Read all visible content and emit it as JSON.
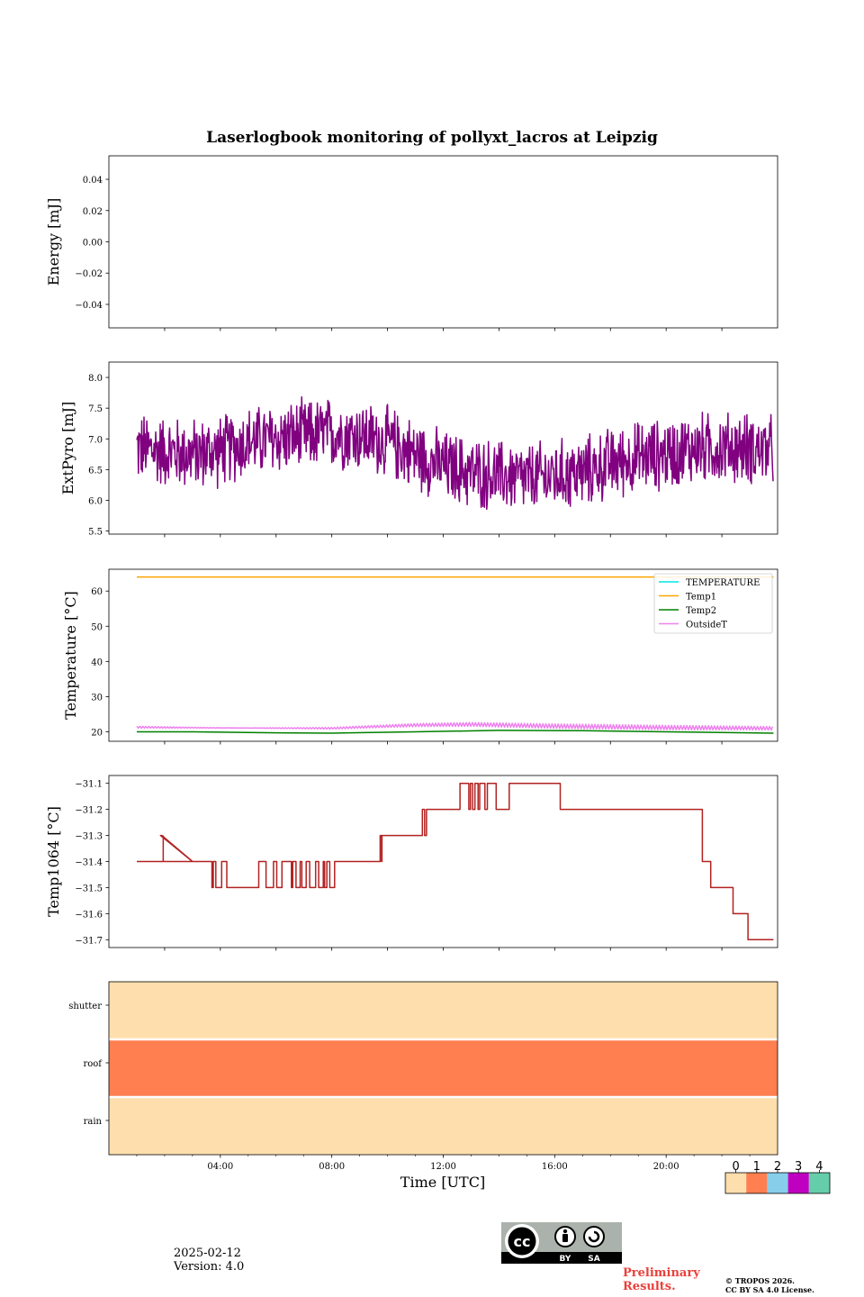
{
  "figure": {
    "title": "Laserlogbook monitoring of pollyxt_lacros at Leipzig",
    "xlabel": "Time [UTC]",
    "date": "2025-02-12",
    "version": "Version: 4.0",
    "preliminary_line1": "Preliminary",
    "preliminary_line2": "Results.",
    "copyright_line1": "© TROPOS 2026.",
    "copyright_line2": "CC BY SA 4.0 License.",
    "cc_badge": {
      "by": "BY",
      "sa": "SA",
      "cc": "cc"
    }
  },
  "chart_data": [
    {
      "type": "line",
      "id": "energy",
      "ylabel": "Energy [mJ]",
      "xlim": [
        0,
        24
      ],
      "ylim": [
        -0.055,
        0.055
      ],
      "yticks": [
        0.04,
        0.02,
        0.0,
        -0.02,
        -0.04
      ],
      "ytick_labels": [
        "0.04",
        "0.02",
        "0.00",
        "−0.02",
        "−0.04"
      ],
      "series": []
    },
    {
      "type": "line",
      "id": "extpyro",
      "ylabel": "ExtPyro [mJ]",
      "xlim": [
        0,
        24
      ],
      "ylim": [
        5.45,
        8.25
      ],
      "yticks": [
        8.0,
        7.5,
        7.0,
        6.5,
        6.0,
        5.5
      ],
      "ytick_labels": [
        "8.0",
        "7.5",
        "7.0",
        "6.5",
        "6.0",
        "5.5"
      ],
      "series": [
        {
          "name": "ExtPyro",
          "color": "#800080",
          "noisy": true,
          "t_start": 1.0,
          "t_end": 23.85,
          "envelope_times": [
            1.0,
            2.0,
            3.0,
            4.0,
            5.0,
            6.0,
            7.0,
            8.0,
            9.0,
            10.0,
            11.0,
            12.0,
            13.0,
            14.0,
            15.0,
            16.0,
            17.0,
            18.0,
            19.0,
            20.0,
            21.0,
            22.0,
            23.0,
            23.85
          ],
          "envelope_mean": [
            6.85,
            6.8,
            6.75,
            6.8,
            6.95,
            7.0,
            7.05,
            7.1,
            7.05,
            6.95,
            6.75,
            6.55,
            6.45,
            6.4,
            6.35,
            6.4,
            6.45,
            6.6,
            6.7,
            6.75,
            6.85,
            6.85,
            6.85,
            6.8
          ],
          "amplitude": 0.55
        }
      ]
    },
    {
      "type": "line",
      "id": "temperature",
      "ylabel": "Temperature [°C]",
      "xlim": [
        0,
        24
      ],
      "ylim": [
        17.3,
        66.2
      ],
      "yticks": [
        60,
        50,
        40,
        30,
        20
      ],
      "ytick_labels": [
        "60",
        "50",
        "40",
        "30",
        "20"
      ],
      "legend": "top-right",
      "series": [
        {
          "name": "TEMPERATURE",
          "color": "#00e5e5",
          "t": [],
          "y": []
        },
        {
          "name": "Temp1",
          "color": "#ffa500",
          "t": [
            1.0,
            23.85
          ],
          "y": [
            64.0,
            64.0
          ]
        },
        {
          "name": "Temp2",
          "color": "#008000",
          "t": [
            1.0,
            3.0,
            6.0,
            8.0,
            11.0,
            14.0,
            17.0,
            20.0,
            23.85
          ],
          "y": [
            20.0,
            20.0,
            19.7,
            19.6,
            20.0,
            20.4,
            20.3,
            20.0,
            19.6
          ]
        },
        {
          "name": "OutsideT",
          "color": "#ee82ee",
          "noisy": true,
          "t_start": 1.0,
          "t_end": 23.85,
          "envelope_times": [
            1.0,
            4.0,
            8.0,
            11.0,
            13.0,
            16.0,
            20.0,
            23.85
          ],
          "envelope_mean": [
            21.3,
            21.1,
            21.0,
            21.9,
            22.1,
            21.6,
            21.2,
            21.0
          ],
          "amplitude": 0.7
        }
      ]
    },
    {
      "type": "line",
      "id": "temp1064",
      "ylabel": "Temp1064 [°C]",
      "xlim": [
        0,
        24
      ],
      "ylim": [
        -31.73,
        -31.07
      ],
      "yticks": [
        -31.1,
        -31.2,
        -31.3,
        -31.4,
        -31.5,
        -31.6,
        -31.7
      ],
      "ytick_labels": [
        "−31.1",
        "−31.2",
        "−31.3",
        "−31.4",
        "−31.5",
        "−31.6",
        "−31.7"
      ],
      "series": [
        {
          "name": "Temp1064",
          "color": "#b22222",
          "segments": [
            {
              "t0": 1.0,
              "t1": 3.0,
              "base": -31.4,
              "alt": -31.5,
              "flicker": 0.0
            },
            {
              "t0": 1.85,
              "t1": 1.9,
              "base": -31.3,
              "alt": -31.4,
              "flicker": 0.0
            },
            {
              "t0": 3.0,
              "t1": 3.7,
              "base": -31.4,
              "alt": -31.5,
              "flicker": 0.0
            },
            {
              "t0": 3.7,
              "t1": 4.5,
              "base": -31.5,
              "alt": -31.4,
              "flicker": 0.5
            },
            {
              "t0": 4.5,
              "t1": 5.2,
              "base": -31.5,
              "alt": -31.4,
              "flicker": 0.0
            },
            {
              "t0": 5.2,
              "t1": 8.1,
              "base": -31.5,
              "alt": -31.4,
              "flicker": 0.5
            },
            {
              "t0": 8.1,
              "t1": 9.4,
              "base": -31.4,
              "alt": -31.3,
              "flicker": 0.0
            },
            {
              "t0": 9.4,
              "t1": 9.8,
              "base": -31.4,
              "alt": -31.3,
              "flicker": 0.5
            },
            {
              "t0": 9.8,
              "t1": 11.2,
              "base": -31.3,
              "alt": -31.2,
              "flicker": 0.0
            },
            {
              "t0": 11.2,
              "t1": 11.4,
              "base": -31.3,
              "alt": -31.2,
              "flicker": 0.5
            },
            {
              "t0": 11.4,
              "t1": 12.6,
              "base": -31.2,
              "alt": -31.1,
              "flicker": 0.0
            },
            {
              "t0": 12.6,
              "t1": 14.4,
              "base": -31.1,
              "alt": -31.2,
              "flicker": 0.4
            },
            {
              "t0": 14.4,
              "t1": 16.2,
              "base": -31.1,
              "alt": -31.2,
              "flicker": 0.0
            },
            {
              "t0": 16.2,
              "t1": 21.3,
              "base": -31.2,
              "alt": -31.3,
              "flicker": 0.0
            },
            {
              "t0": 21.3,
              "t1": 21.6,
              "base": -31.4,
              "alt": -31.3,
              "flicker": 0.0
            },
            {
              "t0": 21.6,
              "t1": 22.4,
              "base": -31.5,
              "alt": -31.6,
              "flicker": 0.0
            },
            {
              "t0": 22.4,
              "t1": 23.0,
              "base": -31.6,
              "alt": -31.7,
              "flicker": 0.5
            },
            {
              "t0": 23.0,
              "t1": 23.85,
              "base": -31.7,
              "alt": -31.6,
              "flicker": 0.05
            }
          ]
        }
      ]
    },
    {
      "type": "heatmap",
      "id": "status",
      "rows": [
        "shutter",
        "roof",
        "rain"
      ],
      "row_values": [
        0,
        1,
        0
      ],
      "xlim": [
        0,
        24
      ],
      "xticks": [
        4,
        8,
        12,
        16,
        20
      ],
      "xtick_labels": [
        "04:00",
        "08:00",
        "12:00",
        "16:00",
        "20:00"
      ],
      "colorbar": {
        "labels": [
          "0",
          "1",
          "2",
          "3",
          "4"
        ],
        "colors": [
          "#ffdead",
          "#ff7f50",
          "#87ceeb",
          "#c000c0",
          "#66cdaa"
        ]
      }
    }
  ]
}
